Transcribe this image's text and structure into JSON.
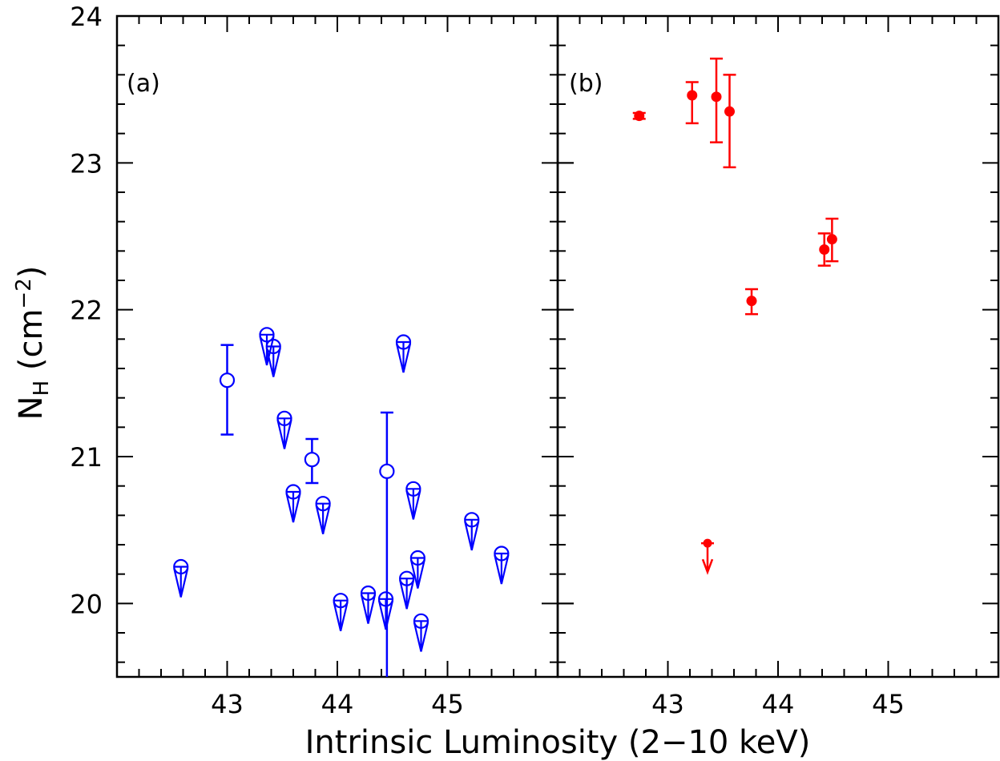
{
  "chart_data": {
    "type": "scatter",
    "xlabel": "Intrinsic Luminosity (2−10 keV)",
    "ylabel": {
      "main": "N",
      "sub": "H",
      "unit_open": " (cm",
      "unit_sup": "−2",
      "unit_close": ")"
    },
    "xlim": [
      42.0,
      46.0
    ],
    "ylim": [
      19.5,
      24.0
    ],
    "xticks": [
      43,
      44,
      45
    ],
    "xticks_minor": [
      42.2,
      42.4,
      42.6,
      42.8,
      43.2,
      43.4,
      43.6,
      43.8,
      44.2,
      44.4,
      44.6,
      44.8,
      45.2,
      45.4,
      45.6,
      45.8
    ],
    "yticks": [
      20,
      21,
      22,
      23,
      24
    ],
    "yticks_minor": [
      19.6,
      19.8,
      20.2,
      20.4,
      20.6,
      20.8,
      21.2,
      21.4,
      21.6,
      21.8,
      22.2,
      22.4,
      22.6,
      22.8,
      23.2,
      23.4,
      23.6,
      23.8
    ],
    "panels": [
      {
        "label": "(a)",
        "color": "#0000ff",
        "marker": "open-circle",
        "detections": [
          {
            "x": 43.0,
            "y": 21.52,
            "ylo": 21.15,
            "yhi": 21.76
          },
          {
            "x": 43.77,
            "y": 20.98,
            "ylo": 20.82,
            "yhi": 21.12
          },
          {
            "x": 44.45,
            "y": 20.9,
            "ylo": 19.5,
            "yhi": 21.3
          }
        ],
        "upper_limits": [
          {
            "x": 42.58,
            "y": 20.25
          },
          {
            "x": 43.36,
            "y": 21.83
          },
          {
            "x": 43.42,
            "y": 21.75
          },
          {
            "x": 43.52,
            "y": 21.26
          },
          {
            "x": 43.6,
            "y": 20.76
          },
          {
            "x": 43.87,
            "y": 20.68
          },
          {
            "x": 44.03,
            "y": 20.02
          },
          {
            "x": 44.28,
            "y": 20.07
          },
          {
            "x": 44.44,
            "y": 20.03
          },
          {
            "x": 44.6,
            "y": 21.78
          },
          {
            "x": 44.63,
            "y": 20.17
          },
          {
            "x": 44.69,
            "y": 20.78
          },
          {
            "x": 44.73,
            "y": 20.31
          },
          {
            "x": 44.76,
            "y": 19.88
          },
          {
            "x": 45.22,
            "y": 20.57
          },
          {
            "x": 45.49,
            "y": 20.34
          }
        ]
      },
      {
        "label": "(b)",
        "color": "#ff0000",
        "marker": "filled-circle",
        "detections": [
          {
            "x": 42.74,
            "y": 23.32,
            "ylo": 23.3,
            "yhi": 23.34
          },
          {
            "x": 43.22,
            "y": 23.46,
            "ylo": 23.27,
            "yhi": 23.55
          },
          {
            "x": 43.44,
            "y": 23.45,
            "ylo": 23.14,
            "yhi": 23.71
          },
          {
            "x": 43.56,
            "y": 23.35,
            "ylo": 22.97,
            "yhi": 23.6
          },
          {
            "x": 43.76,
            "y": 22.06,
            "ylo": 21.97,
            "yhi": 22.14
          },
          {
            "x": 44.42,
            "y": 22.41,
            "ylo": 22.3,
            "yhi": 22.52
          },
          {
            "x": 44.49,
            "y": 22.48,
            "ylo": 22.33,
            "yhi": 22.62
          }
        ],
        "upper_limits": [
          {
            "x": 43.36,
            "y": 20.41
          }
        ]
      }
    ]
  }
}
